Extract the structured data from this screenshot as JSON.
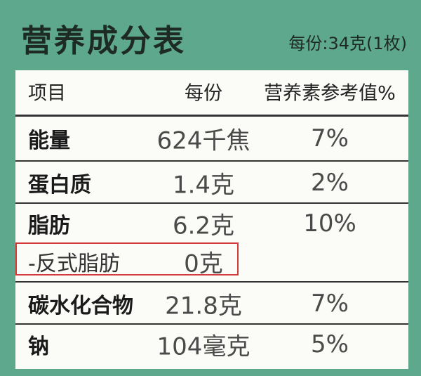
{
  "header": {
    "title": "营养成分表",
    "serving": "每份:34克(1枚)"
  },
  "table": {
    "columns": [
      "项目",
      "每份",
      "营养素参考值%"
    ],
    "rows": [
      [
        "能量",
        "624千焦",
        "7%"
      ],
      [
        "蛋白质",
        "1.4克",
        "2%"
      ],
      [
        "脂肪",
        "6.2克",
        "10%"
      ],
      [
        "-反式脂肪",
        "0克"
      ],
      [
        "碳水化合物",
        "21.8克",
        "7%"
      ],
      [
        "钠",
        "104毫克",
        "5%"
      ]
    ]
  }
}
